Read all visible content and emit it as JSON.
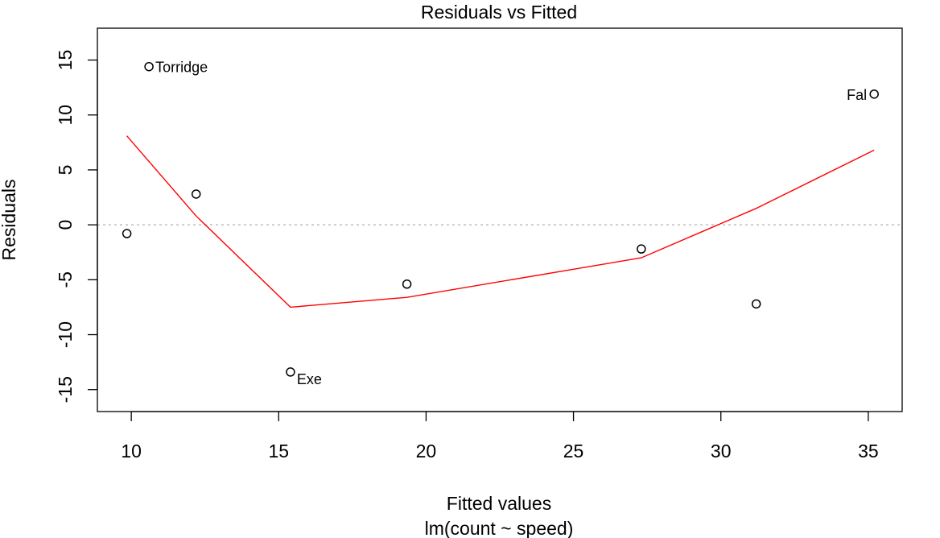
{
  "chart_data": {
    "type": "scatter",
    "title": "Residuals vs Fitted",
    "xlabel": "Fitted values",
    "subtitle": "lm(count ~ speed)",
    "ylabel": "Residuals",
    "xlim": [
      8.85,
      36.15
    ],
    "ylim": [
      -17.0,
      17.9
    ],
    "x_ticks": [
      10,
      15,
      20,
      25,
      30,
      35
    ],
    "y_ticks": [
      -15,
      -10,
      -5,
      0,
      5,
      10,
      15
    ],
    "x_tick_labels": [
      "10",
      "15",
      "20",
      "25",
      "30",
      "35"
    ],
    "y_tick_labels": [
      "-15",
      "-10",
      "-5",
      "0",
      "5",
      "10",
      "15"
    ],
    "points": [
      {
        "x": 9.85,
        "y": -0.8,
        "label": ""
      },
      {
        "x": 10.6,
        "y": 14.4,
        "label": "Torridge"
      },
      {
        "x": 12.2,
        "y": 2.8,
        "label": ""
      },
      {
        "x": 15.4,
        "y": -13.4,
        "label": "Exe"
      },
      {
        "x": 19.35,
        "y": -5.4,
        "label": ""
      },
      {
        "x": 27.3,
        "y": -2.2,
        "label": ""
      },
      {
        "x": 31.2,
        "y": -7.2,
        "label": ""
      },
      {
        "x": 35.2,
        "y": 11.9,
        "label": "Fal"
      }
    ],
    "smoother": {
      "color": "#ff0000",
      "x": [
        9.85,
        12.2,
        15.4,
        19.35,
        27.3,
        31.2,
        35.2
      ],
      "y": [
        8.1,
        0.8,
        -7.5,
        -6.6,
        -3.0,
        1.5,
        6.8
      ]
    },
    "reference_line": {
      "y": 0,
      "color": "#b0b0b0",
      "style": "dotted"
    },
    "grid": false,
    "legend": "none"
  }
}
